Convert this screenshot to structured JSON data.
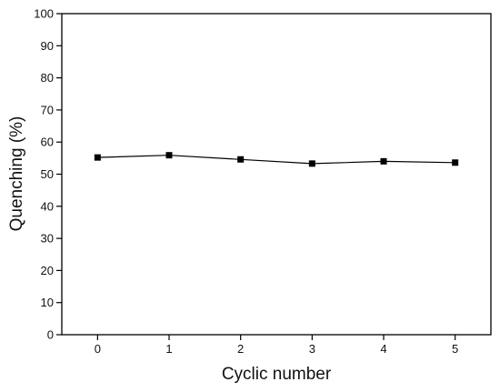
{
  "chart_data": {
    "type": "line",
    "title": "",
    "xlabel": "Cyclic number",
    "ylabel": "Quenching (%)",
    "xlim": [
      -0.5,
      5.5
    ],
    "ylim": [
      0,
      100
    ],
    "xticks": [
      0,
      1,
      2,
      3,
      4,
      5
    ],
    "yticks": [
      0,
      10,
      20,
      30,
      40,
      50,
      60,
      70,
      80,
      90,
      100
    ],
    "grid": false,
    "legend": "none",
    "series": [
      {
        "x": [
          0,
          1,
          2,
          3,
          4,
          5
        ],
        "y": [
          55.2,
          55.9,
          54.6,
          53.3,
          54.0,
          53.6
        ],
        "marker": "square",
        "color": "#000000"
      }
    ]
  }
}
